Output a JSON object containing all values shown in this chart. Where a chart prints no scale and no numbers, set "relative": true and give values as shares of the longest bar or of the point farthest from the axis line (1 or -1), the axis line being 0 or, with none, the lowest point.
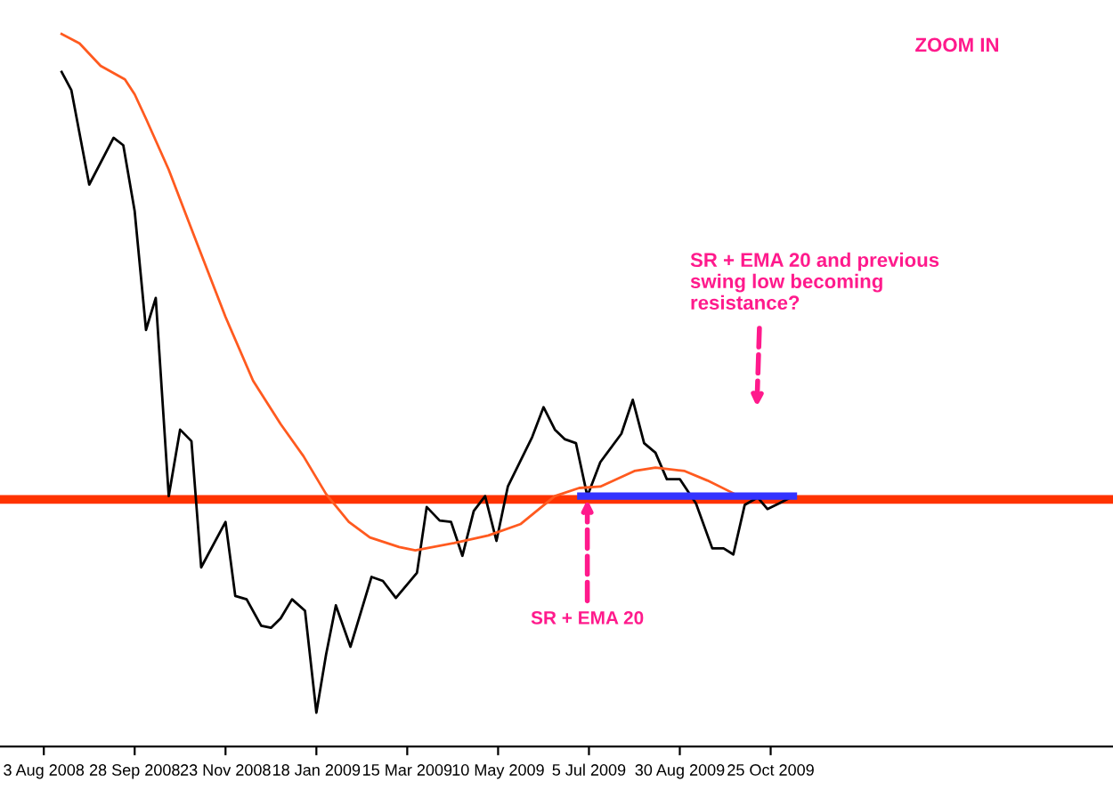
{
  "chart_data": {
    "type": "line",
    "relative": true,
    "grid": false,
    "marker": "none",
    "line_style": "solid",
    "xlim": [
      "2008-07-07",
      "2010-05-24"
    ],
    "xticks": [
      {
        "value": "2008-08-03",
        "label": "3 Aug 2008"
      },
      {
        "value": "2008-09-28",
        "label": "28 Sep 2008"
      },
      {
        "value": "2008-11-23",
        "label": "23 Nov 2008"
      },
      {
        "value": "2009-01-18",
        "label": "18 Jan 2009"
      },
      {
        "value": "2009-03-15",
        "label": "15 Mar 2009"
      },
      {
        "value": "2009-05-10",
        "label": "10 May 2009"
      },
      {
        "value": "2009-07-05",
        "label": "5 Jul 2009"
      },
      {
        "value": "2009-08-30",
        "label": "30 Aug 2009"
      },
      {
        "value": "2009-10-25",
        "label": "25 Oct 2009"
      }
    ],
    "series": [
      {
        "color": "#000000",
        "x": [
          "2008-08-14",
          "2008-08-20",
          "2008-08-31",
          "2008-09-15",
          "2008-09-21",
          "2008-09-28",
          "2008-10-05",
          "2008-10-11",
          "2008-10-19",
          "2008-10-26",
          "2008-11-02",
          "2008-11-08",
          "2008-11-23",
          "2008-11-29",
          "2008-12-06",
          "2008-12-15",
          "2008-12-21",
          "2008-12-27",
          "2009-01-03",
          "2009-01-11",
          "2009-01-18",
          "2009-01-24",
          "2009-01-30",
          "2009-02-08",
          "2009-02-21",
          "2009-02-28",
          "2009-03-08",
          "2009-03-21",
          "2009-03-27",
          "2009-04-04",
          "2009-04-11",
          "2009-04-18",
          "2009-04-25",
          "2009-05-02",
          "2009-05-09",
          "2009-05-16",
          "2009-05-31",
          "2009-06-07",
          "2009-06-14",
          "2009-06-20",
          "2009-06-27",
          "2009-07-04",
          "2009-07-12",
          "2009-07-25",
          "2009-08-01",
          "2009-08-08",
          "2009-08-15",
          "2009-08-22",
          "2009-08-30",
          "2009-09-09",
          "2009-09-19",
          "2009-09-26",
          "2009-10-02",
          "2009-10-09",
          "2009-10-17",
          "2009-10-23",
          "2009-10-30",
          "2009-11-08"
        ],
        "values": [
          0.944,
          0.917,
          0.778,
          0.847,
          0.836,
          0.739,
          0.564,
          0.611,
          0.319,
          0.417,
          0.4,
          0.214,
          0.281,
          0.172,
          0.167,
          0.128,
          0.125,
          0.139,
          0.167,
          0.15,
          0,
          0.086,
          0.158,
          0.097,
          0.2,
          0.194,
          0.169,
          0.206,
          0.303,
          0.283,
          0.281,
          0.231,
          0.297,
          0.319,
          0.253,
          0.333,
          0.406,
          0.45,
          0.417,
          0.403,
          0.397,
          0.319,
          0.369,
          0.411,
          0.461,
          0.397,
          0.383,
          0.344,
          0.344,
          0.308,
          0.242,
          0.242,
          0.233,
          0.306,
          0.317,
          0.3,
          0.308,
          0.319
        ]
      },
      {
        "color": "#ff5a1f",
        "x": [
          "2008-08-14",
          "2008-08-25",
          "2008-09-07",
          "2008-09-22",
          "2008-09-28",
          "2008-10-05",
          "2008-10-19",
          "2008-11-05",
          "2008-11-23",
          "2008-12-10",
          "2008-12-27",
          "2009-01-10",
          "2009-01-24",
          "2009-02-07",
          "2009-02-20",
          "2009-03-10",
          "2009-03-20",
          "2009-04-13",
          "2009-05-04",
          "2009-05-24",
          "2009-06-14",
          "2009-06-29",
          "2009-07-12",
          "2009-08-02",
          "2009-08-15",
          "2009-09-02",
          "2009-09-16",
          "2009-10-03",
          "2009-10-14",
          "2009-10-24",
          "2009-11-06"
        ],
        "values": [
          1.0,
          0.986,
          0.953,
          0.933,
          0.911,
          0.875,
          0.8,
          0.694,
          0.583,
          0.489,
          0.425,
          0.378,
          0.322,
          0.281,
          0.258,
          0.244,
          0.239,
          0.25,
          0.261,
          0.278,
          0.319,
          0.331,
          0.333,
          0.356,
          0.361,
          0.356,
          0.342,
          0.322,
          0.319,
          0.319,
          0.319
        ]
      },
      {
        "color": "#3333ff",
        "x": [
          "2009-06-30",
          "2009-11-08"
        ],
        "values": [
          0.319,
          0.319
        ]
      }
    ],
    "ref_lines": [
      {
        "axis": "y",
        "value": 0.314,
        "color": "#ff3300",
        "line_style": "solid"
      }
    ],
    "annotations": [
      "ZOOM IN",
      {
        "text": "SR + EMA 20",
        "x": "2009-07-04",
        "y": 0.314
      },
      "SR + EMA 20 and previous\nswing low becoming\nresistance?"
    ]
  }
}
